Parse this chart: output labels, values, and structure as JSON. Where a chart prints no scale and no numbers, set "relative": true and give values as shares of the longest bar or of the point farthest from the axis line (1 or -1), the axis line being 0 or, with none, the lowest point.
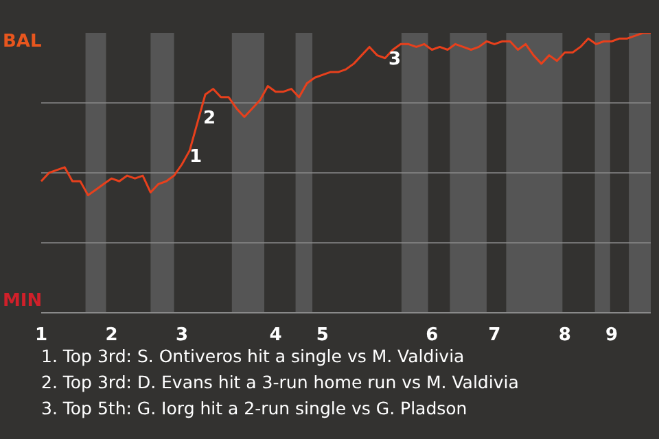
{
  "chart_data": {
    "type": "line",
    "relative": true,
    "categories": [
      "1",
      null,
      null,
      null,
      null,
      null,
      null,
      null,
      null,
      "2",
      null,
      null,
      null,
      null,
      null,
      null,
      null,
      null,
      "3",
      null,
      null,
      null,
      null,
      null,
      null,
      null,
      null,
      null,
      null,
      null,
      "4",
      null,
      null,
      null,
      null,
      null,
      "5",
      null,
      null,
      null,
      null,
      null,
      null,
      null,
      null,
      null,
      null,
      null,
      null,
      null,
      "6",
      null,
      null,
      null,
      null,
      null,
      null,
      null,
      "7",
      null,
      null,
      null,
      null,
      null,
      null,
      null,
      null,
      "8",
      null,
      null,
      null,
      null,
      null,
      "9",
      null,
      null,
      null,
      null,
      null
    ],
    "series": [
      {
        "color": "#e8401c",
        "values": [
          0.47,
          0.5,
          0.51,
          0.52,
          0.47,
          0.47,
          0.42,
          0.44,
          0.46,
          0.48,
          0.47,
          0.49,
          0.48,
          0.49,
          0.43,
          0.46,
          0.47,
          0.49,
          0.53,
          0.58,
          0.68,
          0.78,
          0.8,
          0.77,
          0.77,
          0.73,
          0.7,
          0.73,
          0.76,
          0.81,
          0.79,
          0.79,
          0.8,
          0.77,
          0.82,
          0.84,
          0.85,
          0.86,
          0.86,
          0.87,
          0.89,
          0.92,
          0.95,
          0.92,
          0.91,
          0.94,
          0.96,
          0.96,
          0.95,
          0.96,
          0.94,
          0.95,
          0.94,
          0.96,
          0.95,
          0.94,
          0.95,
          0.97,
          0.96,
          0.97,
          0.97,
          0.94,
          0.96,
          0.92,
          0.89,
          0.92,
          0.9,
          0.93,
          0.93,
          0.95,
          0.98,
          0.96,
          0.97,
          0.97,
          0.98,
          0.98,
          0.99,
          1.0,
          1.0
        ]
      }
    ],
    "grid": "y",
    "marker": "none",
    "line_style": "solid",
    "annotations": [
      "1",
      "2",
      "3",
      "BAL",
      "MIN",
      "1. Top 3rd: S. Ontiveros hit a single vs M. Valdivia",
      "2. Top 3rd: D. Evans hit a 3-run home run vs M. Valdivia",
      "3. Top 5th: G. Iorg hit a 2-run single vs G. Pladson"
    ]
  }
}
